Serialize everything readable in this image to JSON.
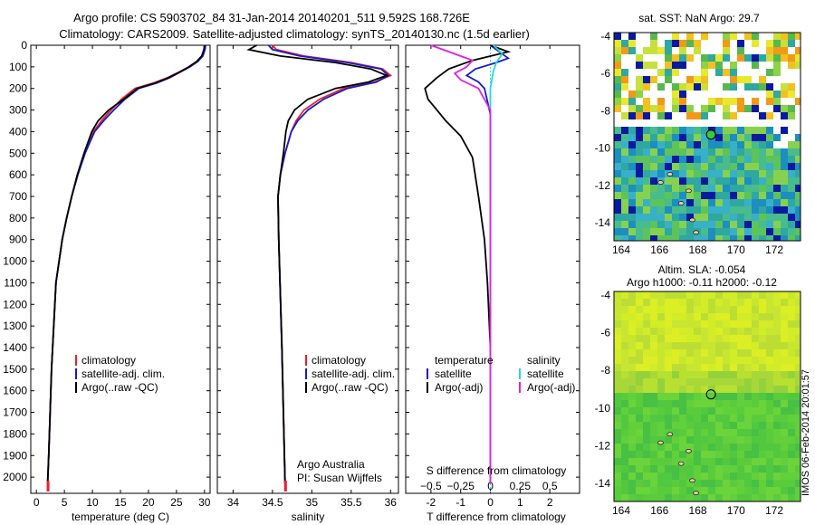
{
  "header": {
    "line1": "Argo profile: CS 5903702_84 31-Jan-2014 20140201_511 9.592S 168.726E",
    "line2": "Climatology: CARS2009. Satellite-adjusted climatology: synTS_20140130.nc (1.5d earlier)"
  },
  "colors": {
    "climatology": "#e8202a",
    "satellite": "#1a1acc",
    "argo": "#000000",
    "sat_salinity": "#22d8e0",
    "argo_salinity": "#e020e0"
  },
  "credits": {
    "org": "Argo Australia",
    "pi": "PI: Susan Wijffels",
    "stamp": "IMOS 06-Feb-2014 20:01:57"
  },
  "chart_data": [
    {
      "id": "temperature",
      "type": "line",
      "xlabel": "temperature (deg C)",
      "xlim": [
        -1,
        31
      ],
      "xticks": [
        0,
        5,
        10,
        15,
        20,
        25,
        30
      ],
      "ylim": [
        2075,
        0
      ],
      "yticks": [
        0,
        100,
        200,
        300,
        400,
        500,
        600,
        700,
        800,
        900,
        1000,
        1100,
        1200,
        1300,
        1400,
        1500,
        1600,
        1700,
        1800,
        1900,
        2000
      ],
      "legend": [
        "climatology",
        "satellite-adj. clim.",
        "Argo(..raw -QC)"
      ],
      "series": [
        {
          "name": "climatology",
          "color": "#e8202a",
          "x": [
            30.0,
            29.9,
            29.6,
            28.7,
            27.2,
            25.4,
            23.4,
            20.9,
            17.6,
            15.2,
            13.3,
            11.6,
            10.2,
            8.6,
            7.3,
            6.3,
            5.4,
            4.6,
            3.5,
            2.7,
            2.2,
            2.0
          ],
          "y": [
            0,
            20,
            50,
            75,
            100,
            125,
            150,
            175,
            200,
            250,
            300,
            350,
            400,
            500,
            600,
            700,
            800,
            900,
            1100,
            1500,
            1900,
            2030
          ]
        },
        {
          "name": "satellite-adj. clim.",
          "color": "#1a1acc",
          "x": [
            30.2,
            30.1,
            29.7,
            28.8,
            27.4,
            25.6,
            23.8,
            21.5,
            18.3,
            15.8,
            13.8,
            12.0,
            10.4,
            8.7,
            7.4,
            6.3,
            5.4,
            4.6,
            3.5,
            2.7,
            2.2,
            2.0
          ],
          "y": [
            0,
            20,
            50,
            75,
            100,
            125,
            150,
            175,
            200,
            250,
            300,
            350,
            400,
            500,
            600,
            700,
            800,
            900,
            1100,
            1500,
            1900,
            2030
          ]
        },
        {
          "name": "Argo(..raw -QC)",
          "color": "#000000",
          "x": [
            30.0,
            29.9,
            29.5,
            28.6,
            27.2,
            25.5,
            23.6,
            21.2,
            18.0,
            15.6,
            12.9,
            11.0,
            9.9,
            8.5,
            7.3,
            6.3,
            5.4,
            4.6,
            3.5,
            2.7,
            2.2,
            2.0
          ],
          "y": [
            0,
            20,
            50,
            75,
            100,
            125,
            150,
            175,
            200,
            250,
            300,
            350,
            400,
            500,
            600,
            700,
            800,
            900,
            1100,
            1500,
            1900,
            2030
          ]
        }
      ]
    },
    {
      "id": "salinity",
      "type": "line",
      "xlabel": "salinity",
      "xlim": [
        33.8,
        36.1
      ],
      "xticks": [
        34,
        34.5,
        35,
        35.5,
        36
      ],
      "xticklabels": [
        "34",
        "34.5",
        "35",
        "35.5",
        "36"
      ],
      "ylim": [
        2075,
        0
      ],
      "legend": [
        "climatology",
        "satellite-adj. clim.",
        "Argo(..raw -QC)"
      ],
      "series": [
        {
          "name": "climatology",
          "color": "#e8202a",
          "x": [
            34.5,
            34.55,
            34.9,
            35.5,
            35.9,
            36.0,
            35.8,
            35.4,
            35.1,
            34.9,
            34.8,
            34.74,
            34.66,
            34.6,
            34.57,
            34.58,
            34.62,
            34.66
          ],
          "y": [
            0,
            20,
            50,
            80,
            110,
            140,
            170,
            200,
            250,
            300,
            350,
            400,
            500,
            600,
            700,
            900,
            1400,
            2030
          ]
        },
        {
          "name": "satellite-adj. clim.",
          "color": "#1a1acc",
          "x": [
            34.45,
            34.5,
            34.85,
            35.45,
            35.88,
            35.97,
            35.82,
            35.45,
            35.15,
            34.95,
            34.82,
            34.74,
            34.66,
            34.6,
            34.57,
            34.58,
            34.62,
            34.66
          ],
          "y": [
            0,
            20,
            50,
            80,
            110,
            140,
            170,
            200,
            250,
            300,
            350,
            400,
            500,
            600,
            700,
            900,
            1400,
            2030
          ]
        },
        {
          "name": "Argo(..raw -QC)",
          "color": "#000000",
          "x": [
            34.3,
            34.2,
            34.6,
            35.3,
            35.75,
            35.95,
            35.72,
            35.3,
            34.95,
            34.78,
            34.7,
            34.67,
            34.64,
            34.6,
            34.57,
            34.58,
            34.62,
            34.66
          ],
          "y": [
            0,
            20,
            50,
            80,
            110,
            140,
            170,
            200,
            250,
            300,
            350,
            400,
            500,
            600,
            700,
            900,
            1400,
            2030
          ]
        }
      ]
    },
    {
      "id": "difference",
      "type": "line",
      "xlabel": "T difference from climatology",
      "xlabel2": "S difference from climatology",
      "xlim": [
        -2.85,
        3.0
      ],
      "xticks": [
        -2,
        -1,
        0,
        1,
        2
      ],
      "top_ticks": [
        -0.5,
        -0.25,
        0,
        0.25,
        0.5
      ],
      "top_ticklabels": [
        "−0.5",
        "−0.25",
        "0",
        "0.25",
        "0.5"
      ],
      "ylim": [
        2075,
        0
      ],
      "legend_temperature": {
        "title": "temperature",
        "items": [
          "satellite",
          "Argo(-adj)"
        ]
      },
      "legend_salinity": {
        "title": "salinity",
        "items": [
          "satellite",
          "Argo(-adj)"
        ]
      },
      "series": [
        {
          "name": "satellite",
          "kind": "temperature",
          "color": "#1a1acc",
          "x": [
            0.0,
            0.3,
            0.6,
            0.2,
            -0.5,
            -0.8,
            -0.4,
            -0.2,
            -0.1,
            0.0,
            0.0,
            0.0
          ],
          "y": [
            0,
            30,
            60,
            80,
            110,
            140,
            170,
            200,
            260,
            320,
            500,
            2030
          ]
        },
        {
          "name": "Argo(-adj)",
          "kind": "temperature",
          "color": "#000000",
          "x": [
            0.0,
            0.6,
            -0.6,
            -1.4,
            -1.8,
            -2.2,
            -2.1,
            -1.8,
            -1.5,
            -1.0,
            -0.6,
            -0.4,
            -0.2,
            -0.1,
            0.0,
            0.0
          ],
          "y": [
            0,
            30,
            70,
            110,
            150,
            200,
            250,
            300,
            350,
            420,
            520,
            700,
            900,
            1100,
            1400,
            2030
          ]
        },
        {
          "name": "satellite",
          "kind": "salinity",
          "color": "#22d8e0",
          "x": [
            0.1,
            0.4,
            0.2,
            0.1,
            0.05,
            0.0,
            0.0,
            0.0
          ],
          "y": [
            0,
            40,
            80,
            120,
            160,
            200,
            300,
            2030
          ]
        },
        {
          "name": "Argo(-adj)",
          "kind": "salinity",
          "color": "#e020e0",
          "x": [
            -2.0,
            -1.2,
            -0.6,
            -0.8,
            -1.2,
            -1.0,
            -0.4,
            0.0,
            0.0,
            0.0
          ],
          "y": [
            0,
            40,
            70,
            100,
            130,
            160,
            200,
            300,
            450,
            2030
          ]
        }
      ]
    }
  ],
  "map_sst": {
    "title": "sat. SST: NaN Argo: 29.7",
    "xticks": [
      "164",
      "166",
      "168",
      "170",
      "172"
    ],
    "yticks": [
      "-4",
      "-6",
      "-8",
      "-10",
      "-12",
      "-14"
    ]
  },
  "map_sla": {
    "title1": "Altim. SLA: -0.054",
    "title2": "Argo h1000: -0.11 h2000: -0.12",
    "xticks": [
      "164",
      "166",
      "168",
      "170",
      "172"
    ],
    "yticks": [
      "-4",
      "-6",
      "-8",
      "-10",
      "-12",
      "-14"
    ]
  }
}
